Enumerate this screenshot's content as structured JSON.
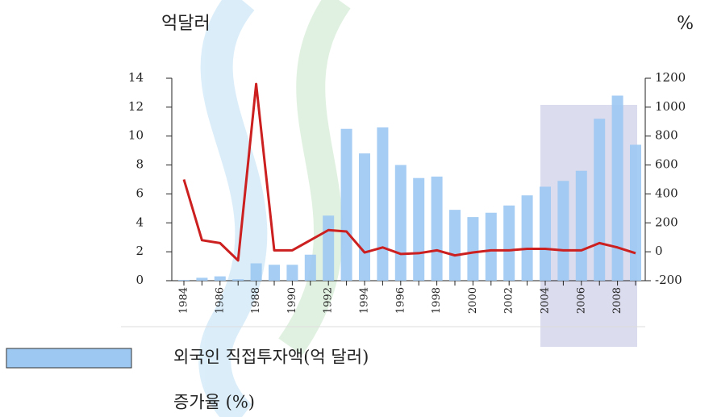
{
  "chart_data": {
    "type": "bar-line",
    "y_label": "억달러",
    "y2_label": "%",
    "categories": [
      "1984",
      null,
      "1986",
      null,
      "1988",
      null,
      "1990",
      null,
      "1992",
      null,
      "1994",
      null,
      "1996",
      null,
      "1998",
      null,
      "2000",
      null,
      "2002",
      null,
      "2004",
      null,
      "2006",
      null,
      "2008",
      null
    ],
    "series": [
      {
        "name": "외국인 직접투자액(억 달러)",
        "type": "bar",
        "color": "#9cc8f2",
        "axis": "y",
        "values": [
          0.05,
          0.2,
          0.3,
          0.1,
          1.2,
          1.1,
          1.1,
          1.8,
          4.5,
          10.5,
          8.8,
          10.6,
          8.0,
          7.1,
          7.2,
          4.9,
          4.4,
          4.7,
          5.2,
          5.9,
          6.5,
          6.9,
          7.6,
          11.2,
          12.8,
          9.4
        ]
      },
      {
        "name": "증가율 (%)",
        "type": "line",
        "color": "#cc1f1f",
        "axis": "y2",
        "values": [
          500,
          80,
          60,
          -60,
          1160,
          10,
          10,
          80,
          150,
          140,
          -5,
          30,
          -15,
          -10,
          10,
          -25,
          -5,
          10,
          10,
          20,
          20,
          10,
          10,
          60,
          30,
          -10
        ]
      }
    ],
    "ylim": [
      0,
      14
    ],
    "yticks": [
      0,
      2,
      4,
      6,
      8,
      10,
      12,
      14
    ],
    "y2lim": [
      -200,
      1200
    ],
    "y2ticks": [
      -200,
      0,
      200,
      400,
      600,
      800,
      1000,
      1200
    ]
  }
}
